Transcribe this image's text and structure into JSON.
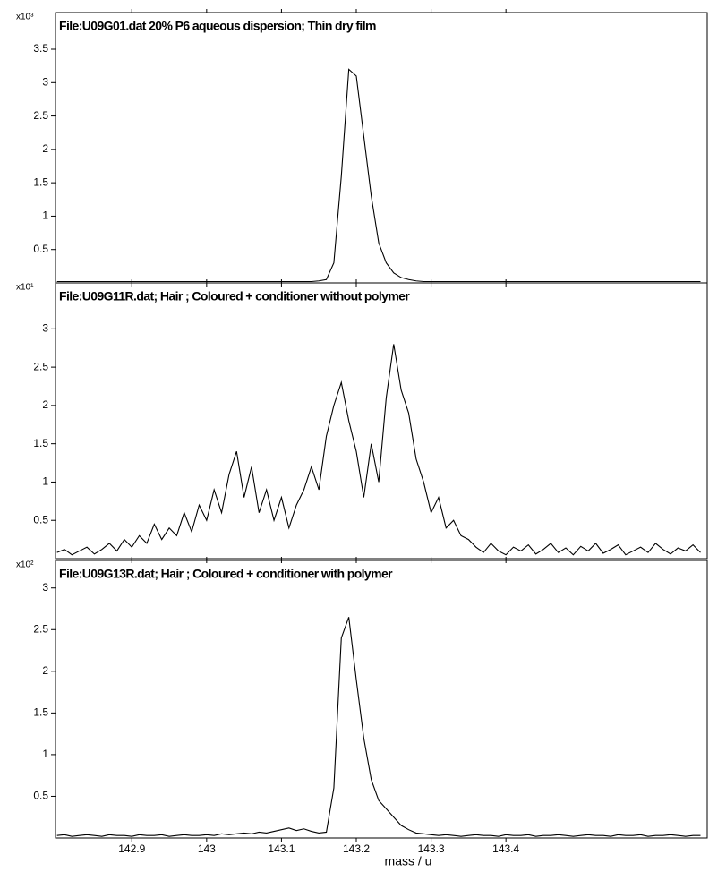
{
  "chart_data": [
    {
      "type": "line",
      "title": "File:U09G01.dat 20% P6 aqueous dispersion; Thin dry film",
      "y_multiplier": "x10³",
      "color": "#000000",
      "xlim": [
        142.798,
        143.669
      ],
      "xticks": [
        142.9,
        143.0,
        143.1,
        143.2,
        143.3,
        143.4
      ],
      "ylim": [
        0,
        4.05
      ],
      "yticks": [
        0.5,
        1.0,
        1.5,
        2.0,
        2.5,
        3.0,
        3.5
      ],
      "x": [
        142.8,
        142.81,
        142.82,
        142.83,
        142.84,
        142.85,
        142.86,
        142.87,
        142.88,
        142.89,
        142.9,
        142.91,
        142.92,
        142.93,
        142.94,
        142.95,
        142.96,
        142.97,
        142.98,
        142.99,
        143.0,
        143.01,
        143.02,
        143.03,
        143.04,
        143.05,
        143.06,
        143.07,
        143.08,
        143.09,
        143.1,
        143.11,
        143.12,
        143.13,
        143.14,
        143.15,
        143.16,
        143.17,
        143.18,
        143.19,
        143.2,
        143.21,
        143.22,
        143.23,
        143.24,
        143.25,
        143.26,
        143.27,
        143.28,
        143.29,
        143.3,
        143.31,
        143.32,
        143.33,
        143.34,
        143.35,
        143.36,
        143.37,
        143.38,
        143.39,
        143.4,
        143.41,
        143.42,
        143.43,
        143.44,
        143.45,
        143.46,
        143.47,
        143.48,
        143.49,
        143.5,
        143.51,
        143.52,
        143.53,
        143.54,
        143.55,
        143.56,
        143.57,
        143.58,
        143.59,
        143.6,
        143.61,
        143.62,
        143.63,
        143.64,
        143.65,
        143.66
      ],
      "values": [
        0.02,
        0.02,
        0.02,
        0.02,
        0.02,
        0.02,
        0.02,
        0.02,
        0.02,
        0.02,
        0.02,
        0.02,
        0.02,
        0.02,
        0.02,
        0.02,
        0.02,
        0.02,
        0.02,
        0.02,
        0.02,
        0.02,
        0.02,
        0.02,
        0.02,
        0.02,
        0.02,
        0.02,
        0.02,
        0.02,
        0.02,
        0.02,
        0.02,
        0.02,
        0.02,
        0.03,
        0.05,
        0.3,
        1.6,
        3.2,
        3.1,
        2.2,
        1.3,
        0.6,
        0.3,
        0.15,
        0.08,
        0.05,
        0.03,
        0.02,
        0.02,
        0.02,
        0.02,
        0.02,
        0.02,
        0.02,
        0.02,
        0.02,
        0.02,
        0.02,
        0.02,
        0.02,
        0.02,
        0.02,
        0.02,
        0.02,
        0.02,
        0.02,
        0.02,
        0.02,
        0.02,
        0.02,
        0.02,
        0.02,
        0.02,
        0.02,
        0.02,
        0.02,
        0.02,
        0.02,
        0.02,
        0.02,
        0.02,
        0.02,
        0.02,
        0.02,
        0.02
      ]
    },
    {
      "type": "line",
      "title": "File:U09G11R.dat; Hair ; Coloured + conditioner  without polymer",
      "y_multiplier": "x10¹",
      "color": "#000000",
      "xlim": [
        142.798,
        143.669
      ],
      "xticks": [
        142.9,
        143.0,
        143.1,
        143.2,
        143.3,
        143.4
      ],
      "ylim": [
        0,
        3.6
      ],
      "yticks": [
        0.5,
        1.0,
        1.5,
        2.0,
        2.5,
        3.0
      ],
      "x": [
        142.8,
        142.81,
        142.82,
        142.83,
        142.84,
        142.85,
        142.86,
        142.87,
        142.88,
        142.89,
        142.9,
        142.91,
        142.92,
        142.93,
        142.94,
        142.95,
        142.96,
        142.97,
        142.98,
        142.99,
        143.0,
        143.01,
        143.02,
        143.03,
        143.04,
        143.05,
        143.06,
        143.07,
        143.08,
        143.09,
        143.1,
        143.11,
        143.12,
        143.13,
        143.14,
        143.15,
        143.16,
        143.17,
        143.18,
        143.19,
        143.2,
        143.21,
        143.22,
        143.23,
        143.24,
        143.25,
        143.26,
        143.27,
        143.28,
        143.29,
        143.3,
        143.31,
        143.32,
        143.33,
        143.34,
        143.35,
        143.36,
        143.37,
        143.38,
        143.39,
        143.4,
        143.41,
        143.42,
        143.43,
        143.44,
        143.45,
        143.46,
        143.47,
        143.48,
        143.49,
        143.5,
        143.51,
        143.52,
        143.53,
        143.54,
        143.55,
        143.56,
        143.57,
        143.58,
        143.59,
        143.6,
        143.61,
        143.62,
        143.63,
        143.64,
        143.65,
        143.66
      ],
      "values": [
        0.08,
        0.12,
        0.05,
        0.1,
        0.15,
        0.06,
        0.12,
        0.2,
        0.1,
        0.25,
        0.15,
        0.3,
        0.2,
        0.45,
        0.25,
        0.4,
        0.3,
        0.6,
        0.35,
        0.7,
        0.5,
        0.9,
        0.6,
        1.1,
        1.4,
        0.8,
        1.2,
        0.6,
        0.9,
        0.5,
        0.8,
        0.4,
        0.7,
        0.9,
        1.2,
        0.9,
        1.6,
        2.0,
        2.3,
        1.8,
        1.4,
        0.8,
        1.5,
        1.0,
        2.1,
        2.8,
        2.2,
        1.9,
        1.3,
        1.0,
        0.6,
        0.8,
        0.4,
        0.5,
        0.3,
        0.25,
        0.15,
        0.08,
        0.2,
        0.1,
        0.05,
        0.15,
        0.1,
        0.18,
        0.06,
        0.12,
        0.2,
        0.08,
        0.14,
        0.05,
        0.16,
        0.1,
        0.2,
        0.07,
        0.12,
        0.18,
        0.05,
        0.1,
        0.15,
        0.08,
        0.2,
        0.12,
        0.06,
        0.14,
        0.1,
        0.18,
        0.08
      ]
    },
    {
      "type": "line",
      "title": "File:U09G13R.dat; Hair ; Coloured + conditioner  with polymer",
      "y_multiplier": "x10²",
      "color": "#000000",
      "xlabel": "mass / u",
      "xlim": [
        142.798,
        143.669
      ],
      "xticks": [
        142.9,
        143.0,
        143.1,
        143.2,
        143.3,
        143.4
      ],
      "ylim": [
        0,
        3.33
      ],
      "yticks": [
        0.5,
        1.0,
        1.5,
        2.0,
        2.5,
        3.0
      ],
      "x": [
        142.8,
        142.81,
        142.82,
        142.83,
        142.84,
        142.85,
        142.86,
        142.87,
        142.88,
        142.89,
        142.9,
        142.91,
        142.92,
        142.93,
        142.94,
        142.95,
        142.96,
        142.97,
        142.98,
        142.99,
        143.0,
        143.01,
        143.02,
        143.03,
        143.04,
        143.05,
        143.06,
        143.07,
        143.08,
        143.09,
        143.1,
        143.11,
        143.12,
        143.13,
        143.14,
        143.15,
        143.16,
        143.17,
        143.18,
        143.19,
        143.2,
        143.21,
        143.22,
        143.23,
        143.24,
        143.25,
        143.26,
        143.27,
        143.28,
        143.29,
        143.3,
        143.31,
        143.32,
        143.33,
        143.34,
        143.35,
        143.36,
        143.37,
        143.38,
        143.39,
        143.4,
        143.41,
        143.42,
        143.43,
        143.44,
        143.45,
        143.46,
        143.47,
        143.48,
        143.49,
        143.5,
        143.51,
        143.52,
        143.53,
        143.54,
        143.55,
        143.56,
        143.57,
        143.58,
        143.59,
        143.6,
        143.61,
        143.62,
        143.63,
        143.64,
        143.65,
        143.66
      ],
      "values": [
        0.03,
        0.04,
        0.02,
        0.03,
        0.04,
        0.03,
        0.02,
        0.04,
        0.03,
        0.03,
        0.02,
        0.04,
        0.03,
        0.03,
        0.04,
        0.02,
        0.03,
        0.04,
        0.03,
        0.03,
        0.04,
        0.03,
        0.05,
        0.04,
        0.05,
        0.06,
        0.05,
        0.07,
        0.06,
        0.08,
        0.1,
        0.12,
        0.09,
        0.11,
        0.08,
        0.06,
        0.07,
        0.6,
        2.4,
        2.65,
        1.9,
        1.2,
        0.7,
        0.45,
        0.35,
        0.25,
        0.15,
        0.1,
        0.06,
        0.05,
        0.04,
        0.03,
        0.04,
        0.03,
        0.02,
        0.03,
        0.04,
        0.03,
        0.03,
        0.02,
        0.04,
        0.03,
        0.03,
        0.04,
        0.02,
        0.03,
        0.03,
        0.04,
        0.03,
        0.02,
        0.03,
        0.04,
        0.03,
        0.03,
        0.02,
        0.04,
        0.03,
        0.03,
        0.04,
        0.02,
        0.03,
        0.03,
        0.04,
        0.03,
        0.02,
        0.03,
        0.03
      ]
    }
  ]
}
